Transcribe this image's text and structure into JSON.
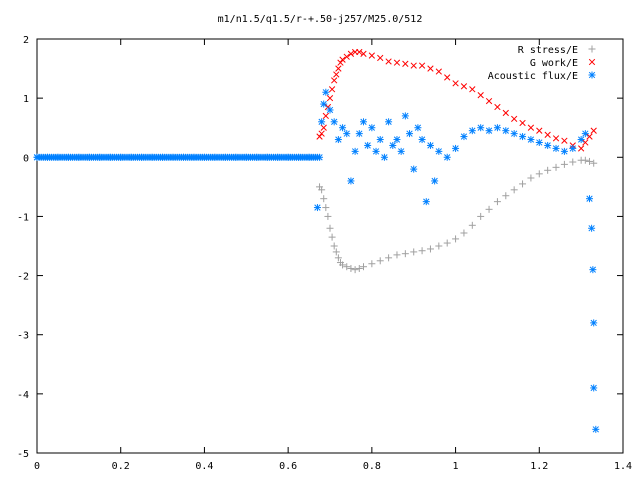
{
  "chart_data": {
    "type": "scatter",
    "title": "m1/n1.5/q1.5/r-+.50-j257/M25.0/512",
    "xlabel": "",
    "ylabel": "",
    "xlim": [
      0,
      1.4
    ],
    "ylim": [
      -5,
      2
    ],
    "xticks": [
      "0",
      "0.2",
      "0.4",
      "0.6",
      "0.8",
      "1",
      "1.2",
      "1.4"
    ],
    "yticks": [
      "2",
      "1",
      "0",
      "-1",
      "-2",
      "-3",
      "-4",
      "-5"
    ],
    "grid": false,
    "legend_position": "top-right",
    "series": [
      {
        "name": "R stress/E",
        "marker": "plus",
        "color": "#a0a0a0",
        "x": [
          0.675,
          0.68,
          0.685,
          0.69,
          0.695,
          0.7,
          0.705,
          0.71,
          0.715,
          0.72,
          0.725,
          0.73,
          0.74,
          0.75,
          0.76,
          0.77,
          0.78,
          0.8,
          0.82,
          0.84,
          0.86,
          0.88,
          0.9,
          0.92,
          0.94,
          0.96,
          0.98,
          1.0,
          1.02,
          1.04,
          1.06,
          1.08,
          1.1,
          1.12,
          1.14,
          1.16,
          1.18,
          1.2,
          1.22,
          1.24,
          1.26,
          1.28,
          1.3,
          1.31,
          1.32,
          1.33
        ],
        "y": [
          -0.5,
          -0.55,
          -0.7,
          -0.85,
          -1.0,
          -1.2,
          -1.35,
          -1.5,
          -1.6,
          -1.7,
          -1.78,
          -1.82,
          -1.85,
          -1.88,
          -1.9,
          -1.88,
          -1.85,
          -1.8,
          -1.75,
          -1.7,
          -1.65,
          -1.63,
          -1.6,
          -1.58,
          -1.55,
          -1.5,
          -1.45,
          -1.38,
          -1.28,
          -1.15,
          -1.0,
          -0.88,
          -0.75,
          -0.65,
          -0.55,
          -0.45,
          -0.35,
          -0.28,
          -0.22,
          -0.17,
          -0.12,
          -0.08,
          -0.05,
          -0.05,
          -0.07,
          -0.1
        ]
      },
      {
        "name": "G work/E",
        "marker": "cross",
        "color": "#ff0000",
        "x": [
          0.675,
          0.68,
          0.685,
          0.69,
          0.695,
          0.7,
          0.705,
          0.71,
          0.715,
          0.72,
          0.725,
          0.73,
          0.74,
          0.75,
          0.76,
          0.77,
          0.78,
          0.8,
          0.82,
          0.84,
          0.86,
          0.88,
          0.9,
          0.92,
          0.94,
          0.96,
          0.98,
          1.0,
          1.02,
          1.04,
          1.06,
          1.08,
          1.1,
          1.12,
          1.14,
          1.16,
          1.18,
          1.2,
          1.22,
          1.24,
          1.26,
          1.28,
          1.3,
          1.31,
          1.32,
          1.33
        ],
        "y": [
          0.35,
          0.4,
          0.5,
          0.7,
          0.85,
          1.0,
          1.15,
          1.3,
          1.4,
          1.5,
          1.6,
          1.65,
          1.7,
          1.75,
          1.78,
          1.78,
          1.75,
          1.72,
          1.68,
          1.62,
          1.6,
          1.58,
          1.55,
          1.55,
          1.5,
          1.45,
          1.35,
          1.25,
          1.2,
          1.15,
          1.05,
          0.95,
          0.85,
          0.75,
          0.65,
          0.58,
          0.5,
          0.45,
          0.38,
          0.32,
          0.28,
          0.2,
          0.15,
          0.25,
          0.35,
          0.45
        ]
      },
      {
        "name": "Acoustic flux/E",
        "marker": "star",
        "color": "#0080ff",
        "x": [
          0.0,
          0.025,
          0.05,
          0.075,
          0.1,
          0.125,
          0.15,
          0.175,
          0.2,
          0.225,
          0.25,
          0.275,
          0.3,
          0.325,
          0.35,
          0.375,
          0.4,
          0.425,
          0.45,
          0.475,
          0.5,
          0.525,
          0.55,
          0.575,
          0.6,
          0.625,
          0.65,
          0.675,
          0.67,
          0.68,
          0.685,
          0.69,
          0.7,
          0.71,
          0.72,
          0.73,
          0.74,
          0.75,
          0.76,
          0.77,
          0.78,
          0.79,
          0.8,
          0.81,
          0.82,
          0.83,
          0.84,
          0.85,
          0.86,
          0.87,
          0.88,
          0.89,
          0.9,
          0.91,
          0.92,
          0.93,
          0.94,
          0.95,
          0.96,
          0.98,
          1.0,
          1.02,
          1.04,
          1.06,
          1.08,
          1.1,
          1.12,
          1.14,
          1.16,
          1.18,
          1.2,
          1.22,
          1.24,
          1.26,
          1.28,
          1.3,
          1.31,
          1.32,
          1.325,
          1.328,
          1.33
        ],
        "y": [
          0,
          0,
          0,
          0,
          0,
          0,
          0,
          0,
          0,
          0,
          0,
          0,
          0,
          0,
          0,
          0,
          0,
          0,
          0,
          0,
          0,
          0,
          0,
          0,
          0,
          0,
          0,
          0,
          -0.85,
          0.6,
          0.9,
          1.1,
          0.8,
          0.6,
          0.3,
          0.5,
          0.4,
          -0.4,
          0.1,
          0.4,
          0.6,
          0.2,
          0.5,
          0.1,
          0.3,
          0.0,
          0.6,
          0.2,
          0.3,
          0.1,
          0.7,
          0.4,
          -0.2,
          0.5,
          0.3,
          -0.75,
          0.2,
          -0.4,
          0.1,
          0.0,
          0.15,
          0.35,
          0.45,
          0.5,
          0.45,
          0.5,
          0.45,
          0.4,
          0.35,
          0.3,
          0.25,
          0.2,
          0.15,
          0.1,
          0.15,
          0.3,
          0.4,
          -0.7,
          -1.2,
          -1.9,
          -2.8
        ]
      }
    ],
    "outliers_below_view": {
      "x": [
        1.33,
        1.335
      ],
      "y": [
        -3.9,
        -4.6
      ]
    }
  }
}
